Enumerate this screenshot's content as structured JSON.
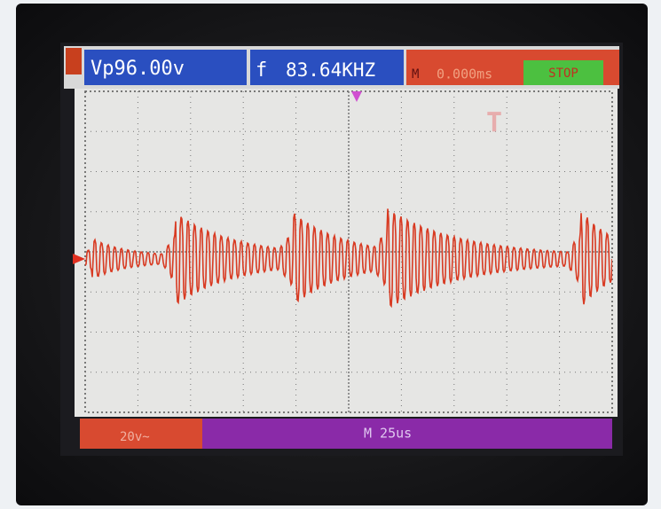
{
  "status_bar": {
    "peak_voltage": "Vp96.00v",
    "frequency_label": "f",
    "frequency": "83.64KHZ",
    "mode_label": "M",
    "time_offset": "0.000ms",
    "run_state": "STOP"
  },
  "bottom_bar": {
    "volts_per_div": "20v~",
    "time_base": "M 25us"
  }
}
